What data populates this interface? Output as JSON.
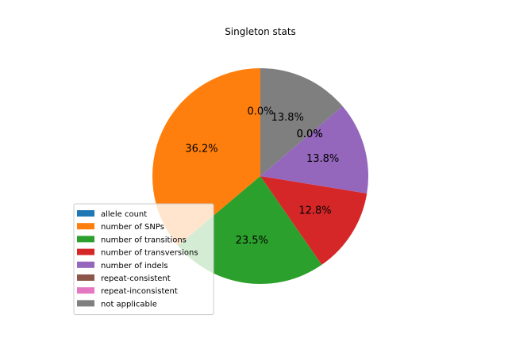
{
  "chart_data": {
    "type": "pie",
    "title": "Singleton stats",
    "start_angle_deg": 90,
    "direction": "counterclockwise",
    "legend_placement": "lower-left",
    "slices": [
      {
        "label": "allele count",
        "value": 0.0,
        "pct_label": "0.0%",
        "color": "#1f77b4"
      },
      {
        "label": "number of SNPs",
        "value": 36.2,
        "pct_label": "36.2%",
        "color": "#ff7f0e"
      },
      {
        "label": "number of transitions",
        "value": 23.5,
        "pct_label": "23.5%",
        "color": "#2ca02c"
      },
      {
        "label": "number of transversions",
        "value": 12.8,
        "pct_label": "12.8%",
        "color": "#d62728"
      },
      {
        "label": "number of indels",
        "value": 13.8,
        "pct_label": "13.8%",
        "color": "#9467bd"
      },
      {
        "label": "repeat-consistent",
        "value": 0.0,
        "pct_label": "0.0%",
        "color": "#8c564b"
      },
      {
        "label": "repeat-inconsistent",
        "value": 0.0,
        "pct_label": "0.0%",
        "color": "#e377c2"
      },
      {
        "label": "not applicable",
        "value": 13.8,
        "pct_label": "13.8%",
        "color": "#7f7f7f"
      }
    ]
  }
}
